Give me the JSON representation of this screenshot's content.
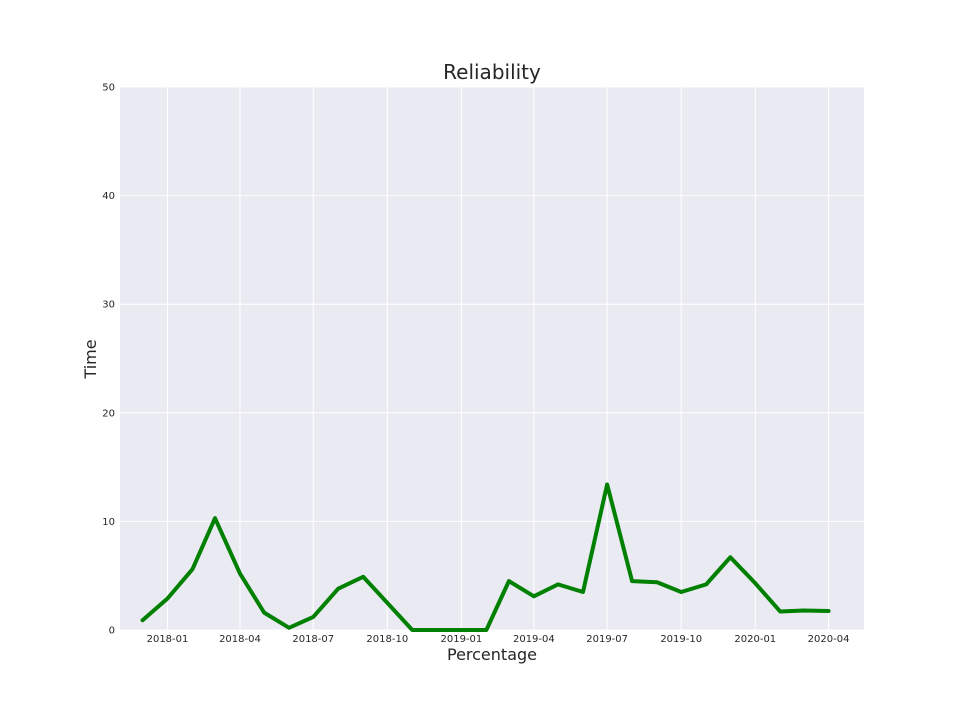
{
  "chart_data": {
    "type": "line",
    "title": "Reliability",
    "xlabel": "Percentage",
    "ylabel": "Time",
    "ylim": [
      0,
      50
    ],
    "xlim": [
      "2017-11-03",
      "2020-05-15"
    ],
    "y_ticks": [
      "0",
      "10",
      "20",
      "30",
      "40",
      "50"
    ],
    "x_ticks": [
      "2018-01",
      "2018-04",
      "2018-07",
      "2018-10",
      "2019-01",
      "2019-04",
      "2019-07",
      "2019-10",
      "2020-01",
      "2020-04"
    ],
    "grid": true,
    "series": [
      {
        "color": "#008000",
        "points": [
          {
            "x": "2017-12-01",
            "y": 0.9
          },
          {
            "x": "2018-01-01",
            "y": 2.9
          },
          {
            "x": "2018-02-01",
            "y": 5.6
          },
          {
            "x": "2018-03-01",
            "y": 10.3
          },
          {
            "x": "2018-04-01",
            "y": 5.2
          },
          {
            "x": "2018-05-01",
            "y": 1.6
          },
          {
            "x": "2018-06-01",
            "y": 0.2
          },
          {
            "x": "2018-07-01",
            "y": 1.2
          },
          {
            "x": "2018-08-01",
            "y": 3.8
          },
          {
            "x": "2018-09-01",
            "y": 4.9
          },
          {
            "x": "2018-10-01",
            "y": 2.5
          },
          {
            "x": "2018-11-01",
            "y": 0.0
          },
          {
            "x": "2018-12-01",
            "y": 0.0
          },
          {
            "x": "2019-01-01",
            "y": 0.0
          },
          {
            "x": "2019-02-01",
            "y": 0.0
          },
          {
            "x": "2019-03-01",
            "y": 4.5
          },
          {
            "x": "2019-04-01",
            "y": 3.1
          },
          {
            "x": "2019-05-01",
            "y": 4.2
          },
          {
            "x": "2019-06-01",
            "y": 3.5
          },
          {
            "x": "2019-07-01",
            "y": 13.4
          },
          {
            "x": "2019-08-01",
            "y": 4.5
          },
          {
            "x": "2019-09-01",
            "y": 4.4
          },
          {
            "x": "2019-10-01",
            "y": 3.5
          },
          {
            "x": "2019-11-01",
            "y": 4.2
          },
          {
            "x": "2019-12-01",
            "y": 6.7
          },
          {
            "x": "2020-01-01",
            "y": 4.3
          },
          {
            "x": "2020-02-01",
            "y": 1.7
          },
          {
            "x": "2020-03-01",
            "y": 1.8
          },
          {
            "x": "2020-04-01",
            "y": 1.75
          }
        ]
      }
    ]
  }
}
